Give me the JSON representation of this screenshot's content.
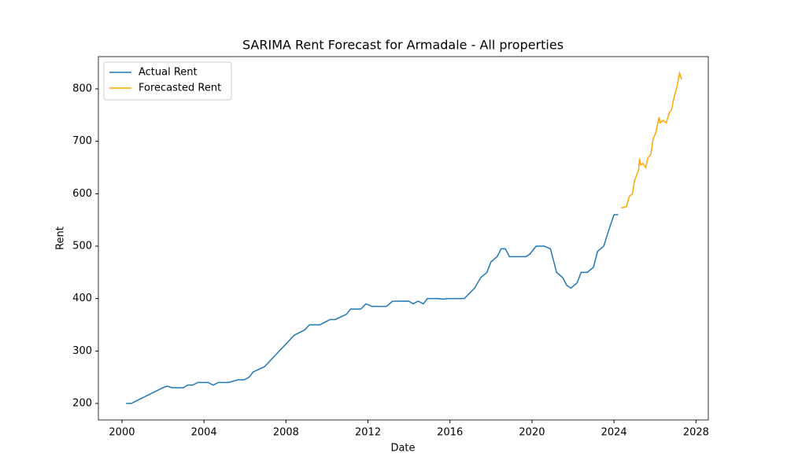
{
  "chart_data": {
    "type": "line",
    "title": "SARIMA Rent Forecast for Armadale - All properties",
    "x_label": "Date",
    "y_label": "Rent",
    "xlim": [
      1998.85,
      2028.6
    ],
    "xticks": [
      2000,
      2004,
      2008,
      2012,
      2016,
      2020,
      2024,
      2028
    ],
    "ylim": [
      168.5,
      861.5
    ],
    "yticks": [
      200,
      300,
      400,
      500,
      600,
      700,
      800
    ],
    "legend": "upper left",
    "series": [
      {
        "name": "Actual Rent",
        "color": "#1f77b4",
        "x": [
          2000.2,
          2000.45,
          2002.0,
          2002.2,
          2002.45,
          2003.0,
          2003.2,
          2003.45,
          2003.7,
          2004.2,
          2004.45,
          2004.7,
          2005.2,
          2005.65,
          2005.95,
          2006.2,
          2006.4,
          2006.95,
          2008.4,
          2008.9,
          2009.15,
          2009.65,
          2009.9,
          2010.15,
          2010.4,
          2010.95,
          2011.15,
          2011.65,
          2011.9,
          2012.2,
          2012.9,
          2013.2,
          2014.0,
          2014.2,
          2014.45,
          2014.7,
          2014.9,
          2015.4,
          2015.65,
          2015.9,
          2016.7,
          2017.2,
          2017.5,
          2017.8,
          2018.0,
          2018.3,
          2018.5,
          2018.7,
          2018.9,
          2019.7,
          2019.9,
          2020.2,
          2020.6,
          2020.9,
          2021.2,
          2021.5,
          2021.7,
          2021.9,
          2022.2,
          2022.4,
          2022.7,
          2023.0,
          2023.2,
          2023.5,
          2023.7,
          2024.0,
          2024.2
        ],
        "values": [
          200,
          200,
          230,
          233,
          230,
          230,
          235,
          235,
          240,
          240,
          235,
          240,
          240,
          245,
          245,
          250,
          260,
          270,
          330,
          340,
          350,
          350,
          355,
          360,
          360,
          370,
          380,
          380,
          390,
          385,
          385,
          395,
          395,
          390,
          395,
          390,
          400,
          400,
          399,
          400,
          400,
          420,
          440,
          450,
          470,
          480,
          495,
          495,
          480,
          480,
          485,
          500,
          500,
          495,
          450,
          440,
          425,
          420,
          430,
          450,
          450,
          460,
          490,
          500,
          525,
          560,
          560
        ]
      },
      {
        "name": "Forecasted Rent",
        "color": "#ffa500",
        "x": [
          2024.35,
          2024.6,
          2024.75,
          2024.9,
          2025.0,
          2025.2,
          2025.25,
          2025.3,
          2025.4,
          2025.55,
          2025.65,
          2025.8,
          2025.9,
          2026.05,
          2026.2,
          2026.25,
          2026.4,
          2026.55,
          2026.7,
          2026.8,
          2026.95,
          2027.05,
          2027.2,
          2027.3
        ],
        "values": [
          573,
          575,
          595,
          600,
          625,
          645,
          667,
          655,
          658,
          650,
          668,
          675,
          703,
          718,
          746,
          735,
          740,
          735,
          755,
          760,
          787,
          800,
          830,
          818
        ]
      }
    ]
  }
}
